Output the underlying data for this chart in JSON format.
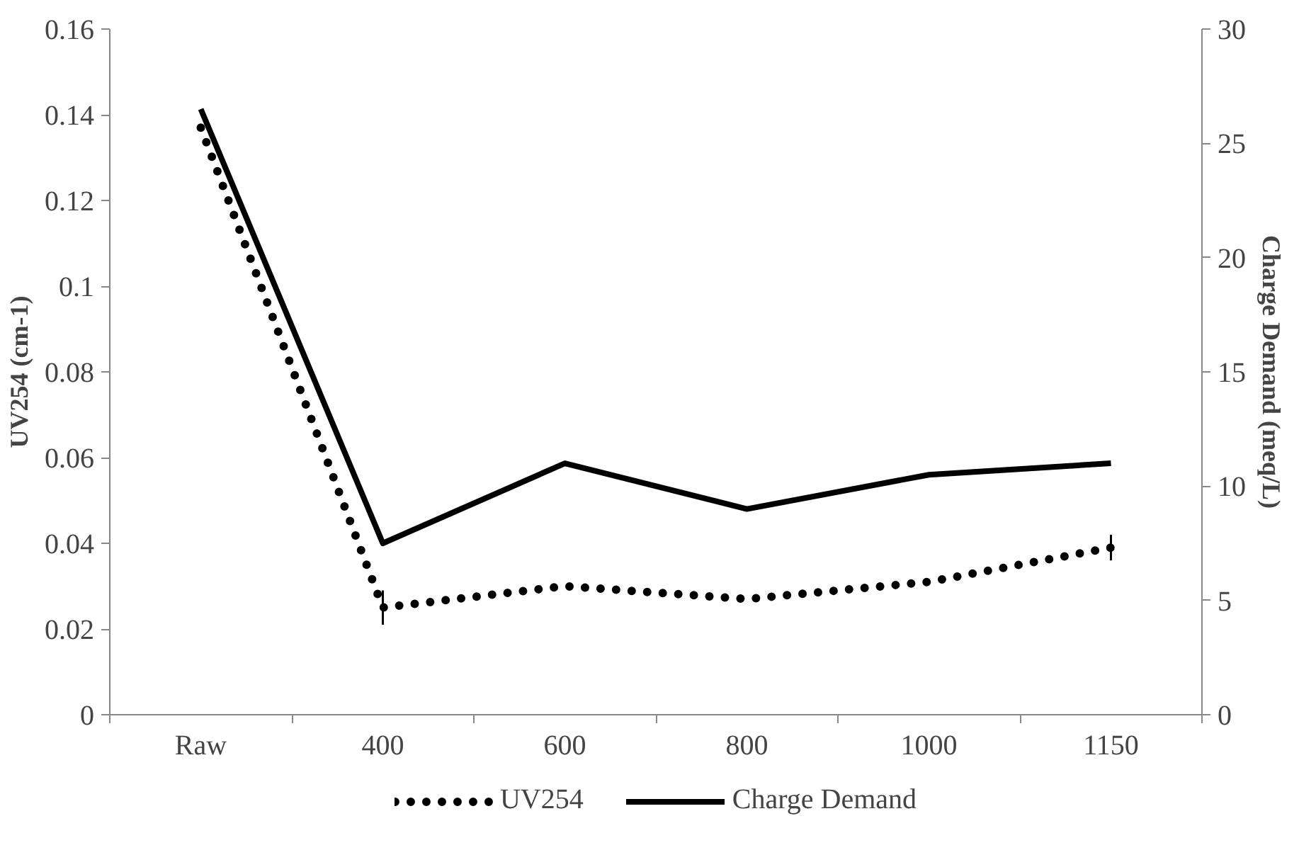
{
  "chart_data": {
    "type": "line",
    "categories": [
      "Raw",
      "400",
      "600",
      "800",
      "1000",
      "1150"
    ],
    "ylabel": "UV254 (cm-1)",
    "y2label": "Charge Demand (meq/L)",
    "ylim": [
      0,
      0.16
    ],
    "yticks": [
      0,
      0.02,
      0.04,
      0.06,
      0.08,
      0.1,
      0.12,
      0.14,
      0.16
    ],
    "y2lim": [
      0,
      30
    ],
    "y2ticks": [
      0,
      5,
      10,
      15,
      20,
      25,
      30
    ],
    "grid": false,
    "legend": "bottom",
    "marker": "none",
    "series": [
      {
        "name": "UV254",
        "color": "#000000",
        "line_style": "dotted",
        "values": [
          0.137,
          0.025,
          0.03,
          0.027,
          0.031,
          0.039
        ],
        "errors": [
          null,
          0.004,
          null,
          null,
          null,
          0.003
        ]
      },
      {
        "name": "Charge Demand",
        "color": "#000000",
        "line_style": "solid",
        "axis": "y2",
        "values": [
          26.5,
          7.5,
          11,
          9,
          10.5,
          11
        ]
      }
    ]
  }
}
